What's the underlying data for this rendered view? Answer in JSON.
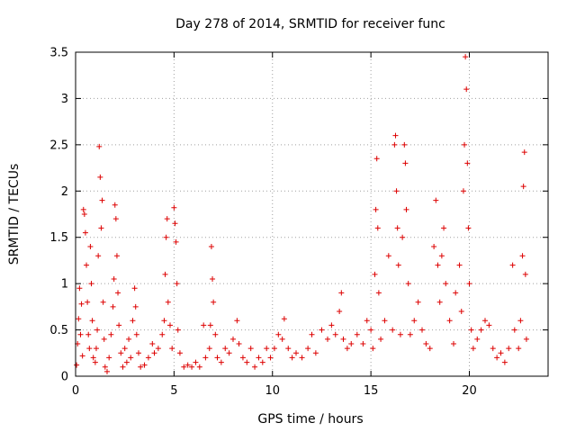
{
  "chart_data": {
    "type": "scatter",
    "title": "Day 278 of 2014, SRMTID for receiver func",
    "xlabel": "GPS time / hours",
    "ylabel": "SRMTID / TECUs",
    "xlim": [
      0,
      24
    ],
    "ylim": [
      0,
      3.5
    ],
    "x_ticks": [
      0,
      5,
      10,
      15,
      20
    ],
    "x_tick_labels": [
      "0",
      "5",
      "10",
      "15",
      "20"
    ],
    "y_ticks": [
      0,
      0.5,
      1,
      1.5,
      2,
      2.5,
      3,
      3.5
    ],
    "y_tick_labels": [
      "0",
      "0.5",
      "1",
      "1.5",
      "2",
      "2.5",
      "3",
      "3.5"
    ],
    "grid": true,
    "marker": "+",
    "marker_color": "#dd0000",
    "series": [
      {
        "name": "SRMTID",
        "points": [
          [
            0.05,
            0.12
          ],
          [
            0.1,
            0.35
          ],
          [
            0.15,
            0.62
          ],
          [
            0.2,
            0.95
          ],
          [
            0.25,
            0.45
          ],
          [
            0.3,
            0.78
          ],
          [
            0.35,
            0.22
          ],
          [
            0.4,
            1.8
          ],
          [
            0.45,
            1.75
          ],
          [
            0.5,
            1.55
          ],
          [
            0.55,
            1.2
          ],
          [
            0.6,
            0.8
          ],
          [
            0.65,
            0.45
          ],
          [
            0.7,
            0.3
          ],
          [
            0.75,
            1.4
          ],
          [
            0.8,
            1.0
          ],
          [
            0.85,
            0.6
          ],
          [
            0.9,
            0.2
          ],
          [
            1.0,
            0.15
          ],
          [
            1.05,
            0.3
          ],
          [
            1.1,
            0.5
          ],
          [
            1.15,
            1.3
          ],
          [
            1.2,
            2.48
          ],
          [
            1.25,
            2.15
          ],
          [
            1.3,
            1.6
          ],
          [
            1.35,
            1.9
          ],
          [
            1.4,
            0.8
          ],
          [
            1.45,
            0.4
          ],
          [
            1.5,
            0.1
          ],
          [
            1.6,
            0.05
          ],
          [
            1.7,
            0.2
          ],
          [
            1.8,
            0.45
          ],
          [
            1.9,
            0.75
          ],
          [
            1.95,
            1.05
          ],
          [
            2.0,
            1.85
          ],
          [
            2.05,
            1.7
          ],
          [
            2.1,
            1.3
          ],
          [
            2.15,
            0.9
          ],
          [
            2.2,
            0.55
          ],
          [
            2.3,
            0.25
          ],
          [
            2.4,
            0.1
          ],
          [
            2.5,
            0.3
          ],
          [
            2.6,
            0.15
          ],
          [
            2.7,
            0.4
          ],
          [
            2.8,
            0.2
          ],
          [
            2.9,
            0.6
          ],
          [
            3.0,
            0.95
          ],
          [
            3.05,
            0.75
          ],
          [
            3.1,
            0.45
          ],
          [
            3.2,
            0.25
          ],
          [
            3.3,
            0.1
          ],
          [
            3.5,
            0.12
          ],
          [
            3.7,
            0.2
          ],
          [
            3.9,
            0.35
          ],
          [
            4.0,
            0.25
          ],
          [
            4.2,
            0.3
          ],
          [
            4.4,
            0.45
          ],
          [
            4.5,
            0.6
          ],
          [
            4.55,
            1.1
          ],
          [
            4.6,
            1.5
          ],
          [
            4.65,
            1.7
          ],
          [
            4.7,
            0.8
          ],
          [
            4.8,
            0.55
          ],
          [
            4.9,
            0.3
          ],
          [
            5.0,
            1.82
          ],
          [
            5.05,
            1.65
          ],
          [
            5.1,
            1.45
          ],
          [
            5.15,
            1.0
          ],
          [
            5.2,
            0.5
          ],
          [
            5.3,
            0.25
          ],
          [
            5.5,
            0.1
          ],
          [
            5.7,
            0.12
          ],
          [
            5.9,
            0.1
          ],
          [
            6.1,
            0.15
          ],
          [
            6.3,
            0.1
          ],
          [
            6.5,
            0.55
          ],
          [
            6.6,
            0.2
          ],
          [
            6.8,
            0.3
          ],
          [
            6.85,
            0.55
          ],
          [
            6.9,
            1.4
          ],
          [
            6.95,
            1.05
          ],
          [
            7.0,
            0.8
          ],
          [
            7.1,
            0.45
          ],
          [
            7.2,
            0.2
          ],
          [
            7.4,
            0.15
          ],
          [
            7.6,
            0.3
          ],
          [
            7.8,
            0.25
          ],
          [
            8.0,
            0.4
          ],
          [
            8.2,
            0.6
          ],
          [
            8.3,
            0.35
          ],
          [
            8.5,
            0.2
          ],
          [
            8.7,
            0.15
          ],
          [
            8.9,
            0.3
          ],
          [
            9.1,
            0.1
          ],
          [
            9.3,
            0.2
          ],
          [
            9.5,
            0.15
          ],
          [
            9.7,
            0.3
          ],
          [
            9.9,
            0.2
          ],
          [
            10.1,
            0.3
          ],
          [
            10.3,
            0.45
          ],
          [
            10.5,
            0.4
          ],
          [
            10.6,
            0.62
          ],
          [
            10.8,
            0.3
          ],
          [
            11.0,
            0.2
          ],
          [
            11.2,
            0.25
          ],
          [
            11.5,
            0.2
          ],
          [
            11.8,
            0.3
          ],
          [
            12.0,
            0.45
          ],
          [
            12.2,
            0.25
          ],
          [
            12.5,
            0.5
          ],
          [
            12.8,
            0.4
          ],
          [
            13.0,
            0.55
          ],
          [
            13.2,
            0.45
          ],
          [
            13.4,
            0.7
          ],
          [
            13.5,
            0.9
          ],
          [
            13.6,
            0.4
          ],
          [
            13.8,
            0.3
          ],
          [
            14.0,
            0.35
          ],
          [
            14.3,
            0.45
          ],
          [
            14.6,
            0.35
          ],
          [
            14.8,
            0.6
          ],
          [
            15.0,
            0.5
          ],
          [
            15.1,
            0.3
          ],
          [
            15.2,
            1.1
          ],
          [
            15.25,
            1.8
          ],
          [
            15.3,
            2.35
          ],
          [
            15.35,
            1.6
          ],
          [
            15.4,
            0.9
          ],
          [
            15.5,
            0.4
          ],
          [
            15.7,
            0.6
          ],
          [
            15.9,
            1.3
          ],
          [
            16.1,
            0.5
          ],
          [
            16.2,
            2.5
          ],
          [
            16.25,
            2.6
          ],
          [
            16.3,
            2.0
          ],
          [
            16.35,
            1.6
          ],
          [
            16.4,
            1.2
          ],
          [
            16.5,
            0.45
          ],
          [
            16.6,
            1.5
          ],
          [
            16.7,
            2.5
          ],
          [
            16.75,
            2.3
          ],
          [
            16.8,
            1.8
          ],
          [
            16.9,
            1.0
          ],
          [
            17.0,
            0.45
          ],
          [
            17.2,
            0.6
          ],
          [
            17.4,
            0.8
          ],
          [
            17.6,
            0.5
          ],
          [
            17.8,
            0.35
          ],
          [
            18.0,
            0.3
          ],
          [
            18.2,
            1.4
          ],
          [
            18.3,
            1.9
          ],
          [
            18.4,
            1.2
          ],
          [
            18.5,
            0.8
          ],
          [
            18.6,
            1.3
          ],
          [
            18.7,
            1.6
          ],
          [
            18.8,
            1.0
          ],
          [
            19.0,
            0.6
          ],
          [
            19.2,
            0.35
          ],
          [
            19.3,
            0.9
          ],
          [
            19.5,
            1.2
          ],
          [
            19.6,
            0.7
          ],
          [
            19.7,
            2.0
          ],
          [
            19.75,
            2.5
          ],
          [
            19.8,
            3.45
          ],
          [
            19.85,
            3.1
          ],
          [
            19.9,
            2.3
          ],
          [
            19.95,
            1.6
          ],
          [
            20.0,
            1.0
          ],
          [
            20.1,
            0.5
          ],
          [
            20.2,
            0.3
          ],
          [
            20.4,
            0.4
          ],
          [
            20.6,
            0.5
          ],
          [
            20.8,
            0.6
          ],
          [
            21.0,
            0.55
          ],
          [
            21.2,
            0.3
          ],
          [
            21.4,
            0.2
          ],
          [
            21.6,
            0.25
          ],
          [
            21.8,
            0.15
          ],
          [
            22.0,
            0.3
          ],
          [
            22.2,
            1.2
          ],
          [
            22.3,
            0.5
          ],
          [
            22.5,
            0.3
          ],
          [
            22.6,
            0.6
          ],
          [
            22.7,
            1.3
          ],
          [
            22.75,
            2.05
          ],
          [
            22.8,
            2.42
          ],
          [
            22.85,
            1.1
          ],
          [
            22.9,
            0.4
          ]
        ]
      }
    ]
  }
}
